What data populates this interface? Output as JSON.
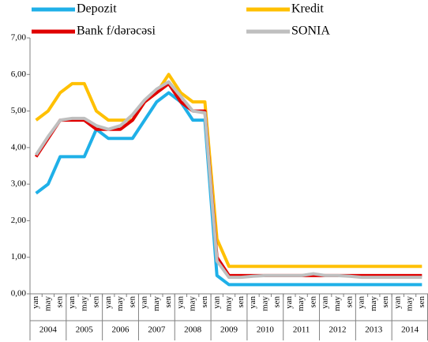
{
  "chart_data": {
    "type": "line",
    "categories": [
      "yan",
      "may",
      "sen",
      "yan",
      "may",
      "sen",
      "yan",
      "may",
      "sen",
      "yan",
      "may",
      "sen",
      "yan",
      "may",
      "sen",
      "yan",
      "may",
      "sen",
      "yan",
      "may",
      "sen",
      "yan",
      "may",
      "sen",
      "yan",
      "may",
      "sen",
      "yan",
      "may",
      "sen",
      "yan",
      "may",
      "sen"
    ],
    "years": [
      "2004",
      "2005",
      "2006",
      "2007",
      "2008",
      "2009",
      "2010",
      "2011",
      "2012",
      "2013",
      "2014"
    ],
    "series": [
      {
        "name": "Depozit",
        "color": "#1fb0e8",
        "values": [
          2.75,
          3.0,
          3.75,
          3.75,
          3.75,
          4.5,
          4.25,
          4.25,
          4.25,
          4.75,
          5.25,
          5.5,
          5.25,
          4.75,
          4.75,
          0.5,
          0.25,
          0.25,
          0.25,
          0.25,
          0.25,
          0.25,
          0.25,
          0.25,
          0.25,
          0.25,
          0.25,
          0.25,
          0.25,
          0.25,
          0.25,
          0.25,
          0.25
        ]
      },
      {
        "name": "Kredit",
        "color": "#ffc000",
        "values": [
          4.75,
          5.0,
          5.5,
          5.75,
          5.75,
          5.0,
          4.75,
          4.75,
          4.75,
          5.25,
          5.5,
          6.0,
          5.5,
          5.25,
          5.25,
          1.5,
          0.75,
          0.75,
          0.75,
          0.75,
          0.75,
          0.75,
          0.75,
          0.75,
          0.75,
          0.75,
          0.75,
          0.75,
          0.75,
          0.75,
          0.75,
          0.75,
          0.75
        ]
      },
      {
        "name": "Bank f/dərəcəsi",
        "color": "#e00000",
        "values": [
          3.75,
          4.25,
          4.75,
          4.75,
          4.75,
          4.5,
          4.5,
          4.5,
          4.75,
          5.25,
          5.5,
          5.75,
          5.25,
          5.0,
          5.0,
          1.0,
          0.5,
          0.5,
          0.5,
          0.5,
          0.5,
          0.5,
          0.5,
          0.5,
          0.5,
          0.5,
          0.5,
          0.5,
          0.5,
          0.5,
          0.5,
          0.5,
          0.5
        ]
      },
      {
        "name": "SONIA",
        "color": "#bfbfbf",
        "values": [
          3.8,
          4.3,
          4.75,
          4.8,
          4.8,
          4.6,
          4.5,
          4.6,
          4.9,
          5.3,
          5.6,
          5.8,
          5.4,
          5.0,
          4.95,
          0.9,
          0.45,
          0.45,
          0.48,
          0.5,
          0.5,
          0.5,
          0.5,
          0.55,
          0.5,
          0.5,
          0.48,
          0.45,
          0.45,
          0.45,
          0.45,
          0.45,
          0.45
        ]
      }
    ],
    "ylim": [
      0,
      7
    ],
    "yticks": [
      {
        "value": 0,
        "label": "0,00"
      },
      {
        "value": 1,
        "label": "1,00"
      },
      {
        "value": 2,
        "label": "2,00"
      },
      {
        "value": 3,
        "label": "3,00"
      },
      {
        "value": 4,
        "label": "4,00"
      },
      {
        "value": 5,
        "label": "5,00"
      },
      {
        "value": 6,
        "label": "6,00"
      },
      {
        "value": 7,
        "label": "7,00"
      }
    ],
    "legend": "top"
  }
}
